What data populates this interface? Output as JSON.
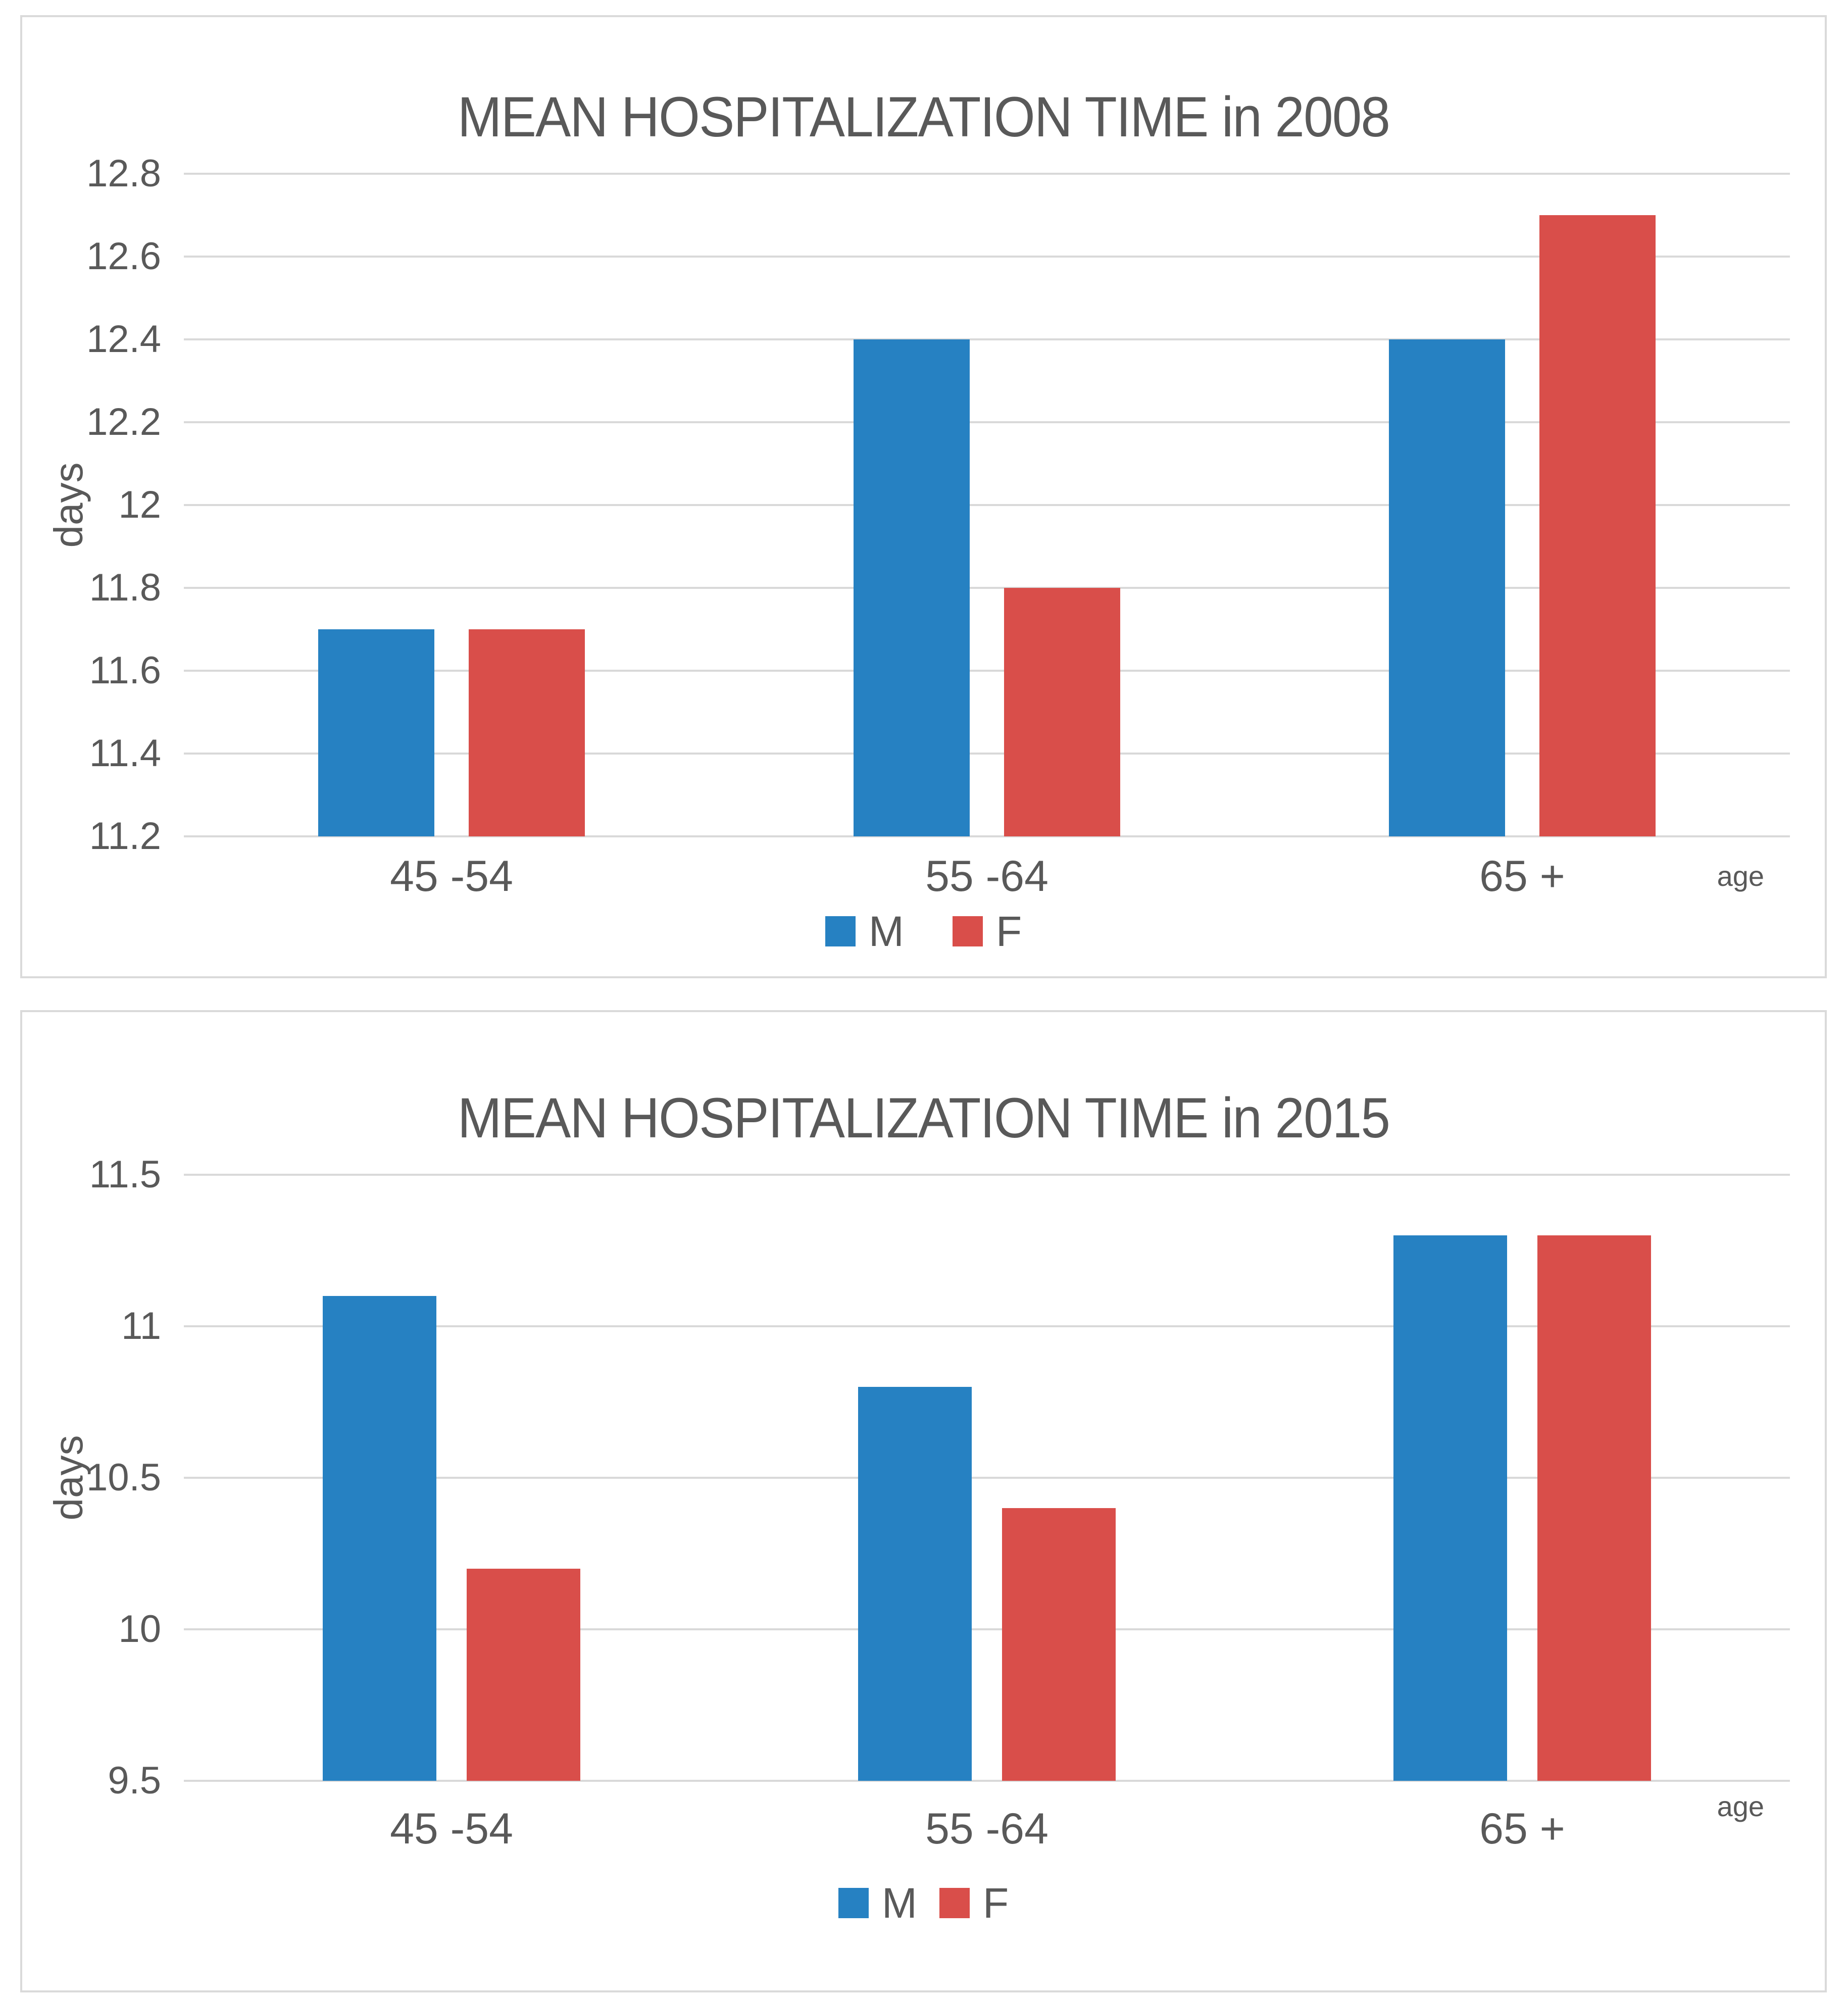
{
  "chart_data": [
    {
      "type": "bar",
      "title": "MEAN HOSPITALIZATION TIME in 2008",
      "categories": [
        "45 -54",
        "55 -64",
        "65 +"
      ],
      "series": [
        {
          "name": "M",
          "values": [
            11.7,
            12.4,
            12.4
          ]
        },
        {
          "name": "F",
          "values": [
            11.7,
            11.8,
            12.7
          ]
        }
      ],
      "colors": {
        "M": "#2681C2",
        "F": "#D94E4A"
      },
      "xlabel": "age",
      "ylabel": "days",
      "ylim": [
        11.2,
        12.8
      ],
      "ytick_step": 0.2,
      "yticks": [
        "12.8",
        "12.6",
        "12.4",
        "12.2",
        "12",
        "11.8",
        "11.6",
        "11.4",
        "11.2"
      ],
      "grid": true,
      "legend_position": "bottom"
    },
    {
      "type": "bar",
      "title": "MEAN HOSPITALIZATION TIME in 2015",
      "categories": [
        "45 -54",
        "55 -64",
        "65 +"
      ],
      "series": [
        {
          "name": "M",
          "values": [
            11.1,
            10.8,
            11.3
          ]
        },
        {
          "name": "F",
          "values": [
            10.2,
            10.4,
            11.3
          ]
        }
      ],
      "colors": {
        "M": "#2681C2",
        "F": "#D94E4A"
      },
      "xlabel": "age",
      "ylabel": "days",
      "ylim": [
        9.5,
        11.5
      ],
      "ytick_step": 0.5,
      "yticks": [
        "11.5",
        "11",
        "10.5",
        "10",
        "9.5"
      ],
      "grid": true,
      "legend_position": "bottom"
    }
  ],
  "style": {
    "male_color": "#2681C2",
    "female_color": "#D94E4A",
    "text_color": "#595959",
    "gridline_color": "#d9d9d9",
    "panel_border_color": "#dadada"
  }
}
